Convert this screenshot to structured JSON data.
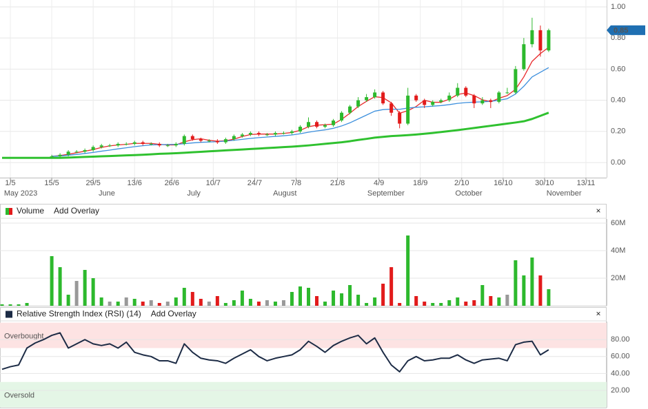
{
  "chart_data": [
    {
      "type": "candlestick",
      "x": [
        -2,
        0,
        2,
        4,
        6,
        8,
        10,
        12,
        14,
        16,
        18,
        20,
        22,
        24,
        26,
        28,
        30,
        32,
        34,
        36,
        38,
        40,
        42,
        44,
        46,
        48,
        50,
        52,
        54,
        56,
        58,
        60,
        62,
        64,
        66,
        68,
        70,
        72,
        74,
        76,
        78,
        80,
        82,
        84,
        86,
        88,
        90,
        92,
        94,
        96,
        98,
        100,
        102,
        104,
        106,
        108,
        110,
        112,
        114,
        116,
        118,
        120,
        122,
        124,
        126,
        128,
        130
      ],
      "open": [
        null,
        null,
        null,
        null,
        null,
        null,
        0.035,
        0.04,
        0.05,
        0.07,
        0.07,
        0.08,
        0.1,
        0.11,
        0.11,
        0.12,
        0.12,
        0.13,
        0.12,
        0.12,
        0.11,
        0.11,
        0.12,
        0.17,
        0.15,
        0.14,
        0.14,
        0.13,
        0.15,
        0.17,
        0.18,
        0.19,
        0.18,
        0.18,
        0.19,
        0.19,
        0.2,
        0.23,
        0.26,
        0.23,
        0.24,
        0.27,
        0.32,
        0.36,
        0.4,
        0.42,
        0.45,
        0.38,
        0.32,
        0.25,
        0.43,
        0.4,
        0.37,
        0.39,
        0.4,
        0.43,
        0.48,
        0.43,
        0.38,
        0.4,
        0.39,
        0.45,
        0.45,
        0.6,
        0.76,
        0.85,
        0.72
      ],
      "high": [
        null,
        null,
        null,
        null,
        null,
        null,
        0.05,
        0.06,
        0.08,
        0.08,
        0.09,
        0.11,
        0.12,
        0.12,
        0.13,
        0.13,
        0.14,
        0.14,
        0.13,
        0.13,
        0.12,
        0.13,
        0.18,
        0.18,
        0.16,
        0.15,
        0.15,
        0.16,
        0.18,
        0.19,
        0.2,
        0.2,
        0.19,
        0.2,
        0.2,
        0.21,
        0.24,
        0.29,
        0.27,
        0.25,
        0.28,
        0.33,
        0.37,
        0.42,
        0.44,
        0.47,
        0.46,
        0.39,
        0.33,
        0.48,
        0.44,
        0.41,
        0.4,
        0.41,
        0.45,
        0.51,
        0.49,
        0.44,
        0.42,
        0.41,
        0.46,
        0.48,
        0.62,
        0.8,
        0.93,
        0.88,
        0.86
      ],
      "low": [
        null,
        null,
        null,
        null,
        null,
        null,
        0.025,
        0.03,
        0.04,
        0.06,
        0.06,
        0.07,
        0.09,
        0.1,
        0.1,
        0.11,
        0.11,
        0.11,
        0.11,
        0.1,
        0.1,
        0.1,
        0.11,
        0.14,
        0.13,
        0.13,
        0.12,
        0.12,
        0.14,
        0.16,
        0.17,
        0.17,
        0.17,
        0.17,
        0.18,
        0.18,
        0.19,
        0.22,
        0.22,
        0.22,
        0.23,
        0.26,
        0.31,
        0.35,
        0.39,
        0.41,
        0.37,
        0.3,
        0.22,
        0.24,
        0.39,
        0.35,
        0.36,
        0.38,
        0.39,
        0.42,
        0.42,
        0.35,
        0.37,
        0.35,
        0.38,
        0.44,
        0.44,
        0.59,
        0.74,
        0.68,
        0.71
      ],
      "close": [
        null,
        null,
        null,
        null,
        null,
        null,
        0.04,
        0.05,
        0.07,
        0.07,
        0.08,
        0.1,
        0.11,
        0.11,
        0.12,
        0.12,
        0.13,
        0.12,
        0.12,
        0.11,
        0.11,
        0.12,
        0.17,
        0.15,
        0.14,
        0.14,
        0.13,
        0.15,
        0.17,
        0.18,
        0.19,
        0.18,
        0.18,
        0.19,
        0.19,
        0.2,
        0.23,
        0.26,
        0.23,
        0.24,
        0.27,
        0.32,
        0.36,
        0.4,
        0.42,
        0.45,
        0.38,
        0.32,
        0.25,
        0.43,
        0.4,
        0.37,
        0.39,
        0.4,
        0.43,
        0.48,
        0.43,
        0.38,
        0.4,
        0.39,
        0.45,
        0.45,
        0.6,
        0.76,
        0.85,
        0.72,
        0.85
      ],
      "up_color": "#2db92d",
      "down_color": "#e21b1b",
      "lines": [
        {
          "color": "#e8282a",
          "width": 1.3,
          "values": [
            null,
            null,
            null,
            null,
            null,
            null,
            0.04,
            0.045,
            0.053,
            0.063,
            0.073,
            0.083,
            0.097,
            0.107,
            0.113,
            0.117,
            0.123,
            0.123,
            0.123,
            0.117,
            0.113,
            0.113,
            0.133,
            0.147,
            0.153,
            0.143,
            0.137,
            0.14,
            0.15,
            0.167,
            0.18,
            0.183,
            0.183,
            0.183,
            0.187,
            0.193,
            0.207,
            0.23,
            0.24,
            0.243,
            0.247,
            0.277,
            0.317,
            0.36,
            0.393,
            0.423,
            0.417,
            0.383,
            0.317,
            0.333,
            0.36,
            0.4,
            0.387,
            0.387,
            0.407,
            0.437,
            0.447,
            0.43,
            0.403,
            0.39,
            0.413,
            0.43,
            0.47,
            0.55,
            0.65,
            0.7,
            0.74
          ]
        },
        {
          "color": "#3c8fdd",
          "width": 1.3,
          "values": [
            null,
            null,
            null,
            null,
            null,
            null,
            0.04,
            0.042,
            0.047,
            0.052,
            0.058,
            0.065,
            0.073,
            0.08,
            0.088,
            0.095,
            0.102,
            0.108,
            0.113,
            0.115,
            0.116,
            0.117,
            0.121,
            0.126,
            0.13,
            0.132,
            0.134,
            0.138,
            0.143,
            0.149,
            0.155,
            0.16,
            0.164,
            0.168,
            0.172,
            0.177,
            0.185,
            0.195,
            0.203,
            0.21,
            0.22,
            0.235,
            0.255,
            0.28,
            0.305,
            0.33,
            0.34,
            0.343,
            0.342,
            0.35,
            0.355,
            0.358,
            0.362,
            0.366,
            0.372,
            0.38,
            0.385,
            0.388,
            0.39,
            0.393,
            0.4,
            0.41,
            0.44,
            0.49,
            0.55,
            0.58,
            0.61
          ]
        },
        {
          "color": "#2fc12f",
          "width": 3,
          "values": [
            0.03,
            0.03,
            0.03,
            0.03,
            0.03,
            0.03,
            0.03,
            0.03,
            0.032,
            0.034,
            0.036,
            0.038,
            0.04,
            0.042,
            0.044,
            0.046,
            0.048,
            0.05,
            0.053,
            0.056,
            0.058,
            0.06,
            0.063,
            0.066,
            0.069,
            0.072,
            0.075,
            0.078,
            0.081,
            0.084,
            0.087,
            0.09,
            0.093,
            0.096,
            0.099,
            0.102,
            0.106,
            0.11,
            0.115,
            0.12,
            0.125,
            0.13,
            0.137,
            0.145,
            0.152,
            0.16,
            0.165,
            0.17,
            0.173,
            0.176,
            0.18,
            0.185,
            0.19,
            0.196,
            0.202,
            0.208,
            0.215,
            0.222,
            0.229,
            0.236,
            0.243,
            0.25,
            0.257,
            0.265,
            0.28,
            0.3,
            0.32
          ]
        }
      ],
      "xlim": [
        -2.5,
        144
      ],
      "xticks": [
        {
          "value": 0,
          "label": "1/5"
        },
        {
          "value": 10,
          "label": "15/5"
        },
        {
          "value": 20,
          "label": "29/5"
        },
        {
          "value": 30,
          "label": "13/6"
        },
        {
          "value": 39,
          "label": "26/6"
        },
        {
          "value": 49,
          "label": "10/7"
        },
        {
          "value": 59,
          "label": "24/7"
        },
        {
          "value": 69,
          "label": "7/8"
        },
        {
          "value": 79,
          "label": "21/8"
        },
        {
          "value": 89,
          "label": "4/9"
        },
        {
          "value": 99,
          "label": "18/9"
        },
        {
          "value": 109,
          "label": "2/10"
        },
        {
          "value": 119,
          "label": "16/10"
        },
        {
          "value": 129,
          "label": "30/10"
        },
        {
          "value": 139,
          "label": "13/11"
        }
      ],
      "month_ticks": [
        {
          "value": 2.5,
          "label": "May 2023"
        },
        {
          "value": 23.3,
          "label": "June"
        },
        {
          "value": 44.3,
          "label": "July"
        },
        {
          "value": 66.3,
          "label": "August"
        },
        {
          "value": 90.7,
          "label": "September"
        },
        {
          "value": 110.7,
          "label": "October"
        },
        {
          "value": 133.7,
          "label": "November"
        }
      ],
      "ylim": [
        -0.097,
        1.044
      ],
      "yticks": [
        {
          "value": 0,
          "label": "0.00"
        },
        {
          "value": 0.2,
          "label": "0.20"
        },
        {
          "value": 0.4,
          "label": "0.40"
        },
        {
          "value": 0.6,
          "label": "0.60"
        },
        {
          "value": 0.8,
          "label": "0.80"
        },
        {
          "value": 1,
          "label": "1.00"
        }
      ],
      "grid": true,
      "last_price_color": "#1f6fb2"
    },
    {
      "type": "bar",
      "title": "Volume",
      "overlay_button": "Add Overlay",
      "close_button": "×",
      "x": [
        -2,
        0,
        2,
        4,
        6,
        8,
        10,
        12,
        14,
        16,
        18,
        20,
        22,
        24,
        26,
        28,
        30,
        32,
        34,
        36,
        38,
        40,
        42,
        44,
        46,
        48,
        50,
        52,
        54,
        56,
        58,
        60,
        62,
        64,
        66,
        68,
        70,
        72,
        74,
        76,
        78,
        80,
        82,
        84,
        86,
        88,
        90,
        92,
        94,
        96,
        98,
        100,
        102,
        104,
        106,
        108,
        110,
        112,
        114,
        116,
        118,
        120,
        122,
        124,
        126,
        128,
        130
      ],
      "values": [
        1,
        1,
        1,
        2,
        0,
        0,
        36,
        28,
        8,
        18,
        26,
        20,
        6,
        3,
        3,
        6,
        5,
        3,
        4,
        2,
        3,
        6,
        13,
        10,
        5,
        3,
        7,
        2,
        4,
        11,
        5,
        3,
        4,
        3,
        4,
        10,
        14,
        13,
        7,
        3,
        11,
        9,
        15,
        8,
        2,
        6,
        16,
        28,
        2,
        51,
        7,
        3,
        2,
        2,
        4,
        6,
        3,
        4,
        15,
        7,
        6,
        8,
        33,
        22,
        35,
        22,
        12
      ],
      "up_color": "#2db92d",
      "down_color": "#e21b1b",
      "flat_color": "#999999",
      "xlim": [
        -2.5,
        144
      ],
      "ylim": [
        0,
        63
      ],
      "yticks": [
        {
          "value": 20,
          "label": "20M"
        },
        {
          "value": 40,
          "label": "40M"
        },
        {
          "value": 60,
          "label": "60M"
        }
      ],
      "grid": true
    },
    {
      "type": "line",
      "title": "Relative Strength Index (RSI) (14)",
      "overlay_button": "Add Overlay",
      "close_button": "×",
      "x": [
        -2,
        0,
        2,
        4,
        6,
        8,
        10,
        12,
        14,
        16,
        18,
        20,
        22,
        24,
        26,
        28,
        30,
        32,
        34,
        36,
        38,
        40,
        42,
        44,
        46,
        48,
        50,
        52,
        54,
        56,
        58,
        60,
        62,
        64,
        66,
        68,
        70,
        72,
        74,
        76,
        78,
        80,
        82,
        84,
        86,
        88,
        90,
        92,
        94,
        96,
        98,
        100,
        102,
        104,
        106,
        108,
        110,
        112,
        114,
        116,
        118,
        120,
        122,
        124,
        126,
        128,
        130
      ],
      "values": [
        45,
        48,
        50,
        70,
        76,
        80,
        85,
        88,
        70,
        75,
        80,
        75,
        73,
        75,
        70,
        77,
        65,
        62,
        60,
        55,
        55,
        52,
        75,
        65,
        58,
        56,
        55,
        52,
        58,
        63,
        68,
        60,
        55,
        58,
        60,
        62,
        68,
        78,
        72,
        65,
        73,
        78,
        82,
        85,
        75,
        82,
        65,
        50,
        42,
        55,
        60,
        55,
        56,
        58,
        58,
        62,
        56,
        52,
        56,
        57,
        58,
        55,
        74,
        77,
        78,
        62,
        68
      ],
      "color": "#1c2b45",
      "bands": [
        {
          "range": [
            70,
            100
          ],
          "label": "Overbought",
          "color": "#fde3e3"
        },
        {
          "range": [
            0,
            30
          ],
          "label": "Oversold",
          "color": "#e4f6e6"
        }
      ],
      "xlim": [
        -2.5,
        144
      ],
      "ylim": [
        -0.3,
        101.3
      ],
      "yticks": [
        {
          "value": 20,
          "label": "20.00"
        },
        {
          "value": 40,
          "label": "40.00"
        },
        {
          "value": 60,
          "label": "60.00"
        },
        {
          "value": 80,
          "label": "80.00"
        }
      ],
      "grid": true
    }
  ]
}
